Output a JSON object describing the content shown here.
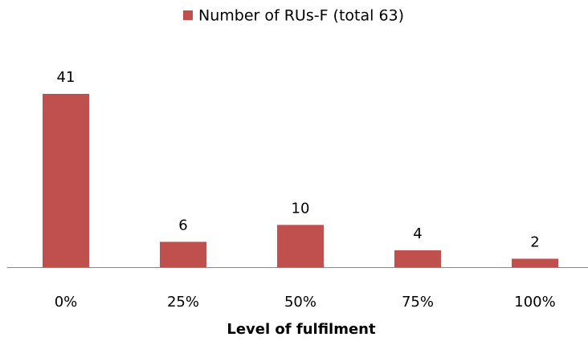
{
  "chart_data": {
    "type": "bar",
    "categories": [
      "0%",
      "25%",
      "50%",
      "75%",
      "100%"
    ],
    "series": [
      {
        "name": "Number of RUs-F (total 63)",
        "color": "#c0504d",
        "values": [
          41,
          6,
          10,
          4,
          2
        ]
      }
    ],
    "x_label": "Level of fulfilment",
    "legend": "top"
  }
}
